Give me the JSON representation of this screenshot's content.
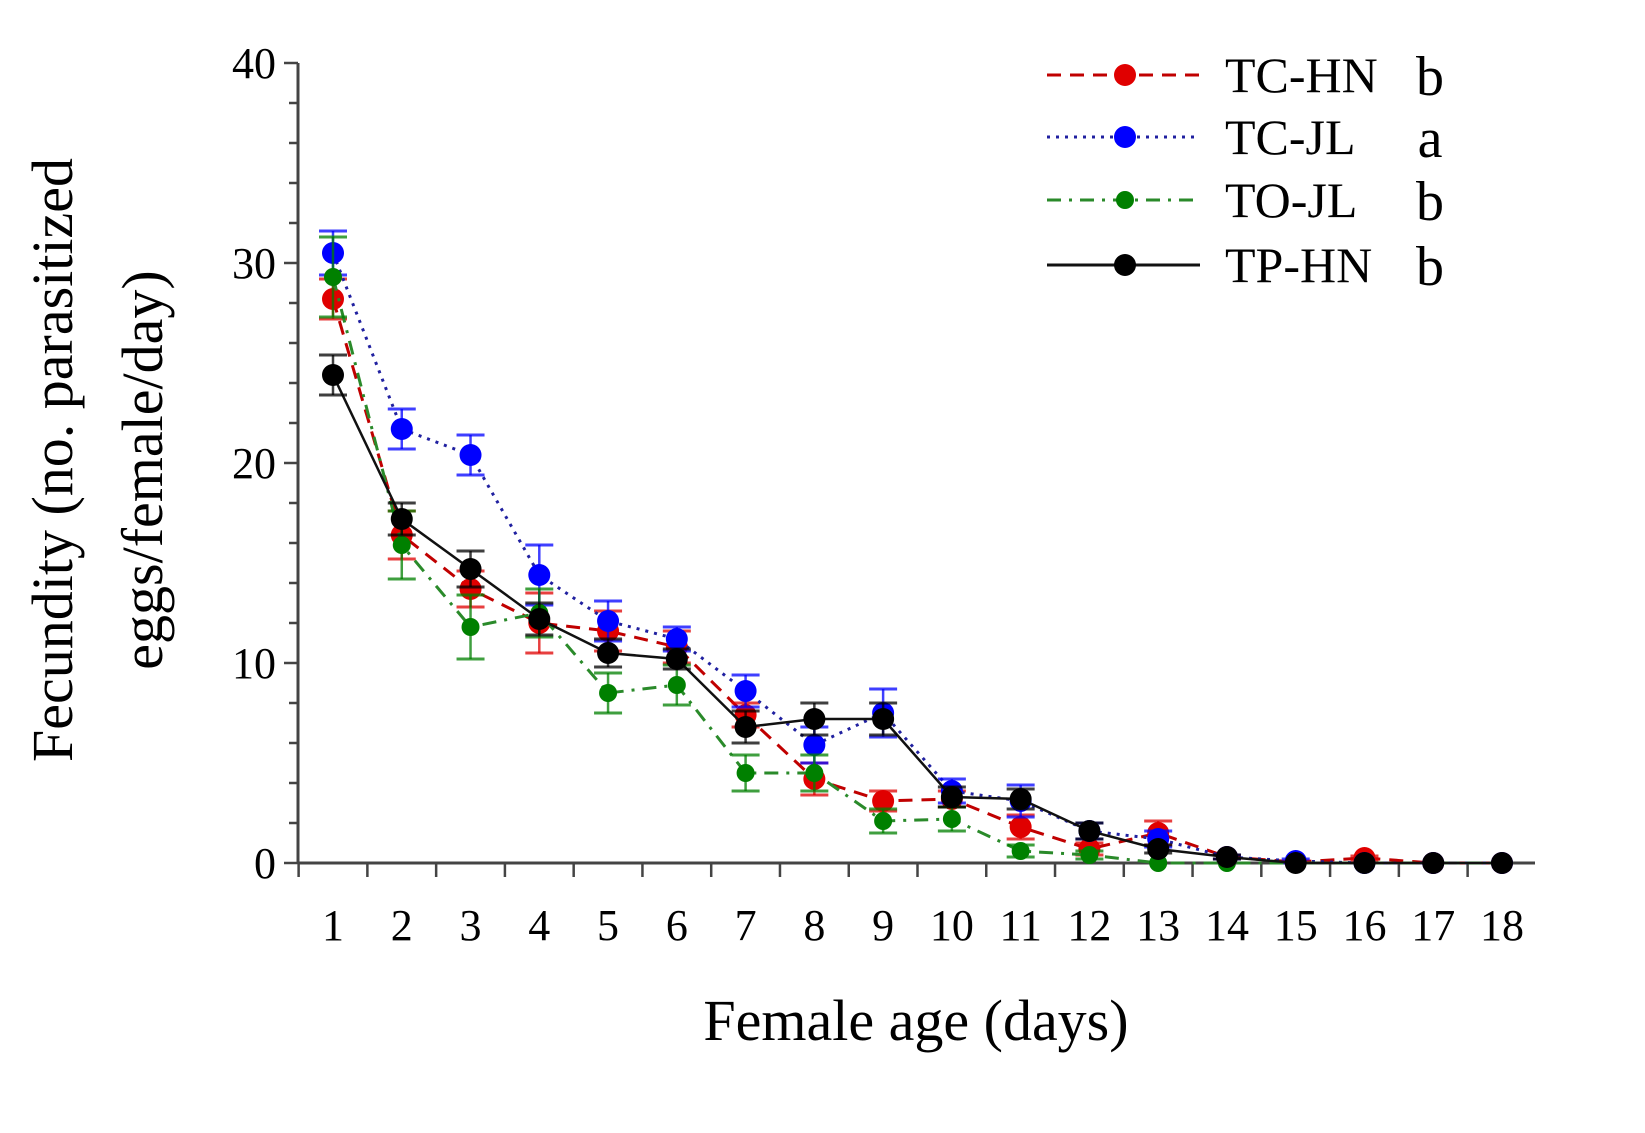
{
  "chart_data": {
    "type": "line",
    "title": "",
    "xlabel": "Female age (days)",
    "ylabel_line1": "Fecundity (no. parasitized",
    "ylabel_line2": "eggs/female/day)",
    "ylim": [
      0,
      40
    ],
    "yticks": [
      0,
      10,
      20,
      30,
      40
    ],
    "x": [
      1,
      2,
      3,
      4,
      5,
      6,
      7,
      8,
      9,
      10,
      11,
      12,
      13,
      14,
      15,
      16,
      17,
      18
    ],
    "grid": false,
    "legend_position": "top-right",
    "series": [
      {
        "name": "TC-HN",
        "letter": "b",
        "color": "#e00000",
        "line_color": "#c00000",
        "dash": "dashed",
        "values": [
          28.2,
          16.4,
          13.7,
          12.0,
          11.6,
          10.8,
          7.4,
          4.2,
          3.1,
          3.2,
          1.8,
          0.7,
          1.5,
          0.3,
          0.05,
          0.25,
          0,
          0
        ],
        "errors": [
          1.0,
          1.2,
          0.9,
          1.5,
          1.0,
          0.8,
          0.6,
          0.8,
          0.5,
          0.4,
          0.6,
          0.3,
          0.6,
          0.1,
          0.05,
          0.1,
          0,
          0
        ]
      },
      {
        "name": "TC-JL",
        "letter": "a",
        "color": "#0000ff",
        "line_color": "#2020a0",
        "dash": "dotted",
        "values": [
          30.5,
          21.7,
          20.4,
          14.4,
          12.1,
          11.2,
          8.6,
          5.9,
          7.5,
          3.6,
          3.1,
          1.6,
          1.2,
          0.3,
          0.1,
          0,
          0,
          0
        ],
        "errors": [
          1.1,
          1.0,
          1.0,
          1.5,
          1.0,
          0.6,
          0.8,
          0.9,
          1.2,
          0.6,
          0.8,
          0.4,
          0.4,
          0.1,
          0.1,
          0,
          0,
          0
        ]
      },
      {
        "name": "TO-JL",
        "letter": "b",
        "color": "#008000",
        "line_color": "#2a8a2a",
        "dash": "dashdot",
        "values": [
          29.3,
          15.9,
          11.8,
          12.5,
          8.5,
          8.9,
          4.5,
          4.5,
          2.1,
          2.2,
          0.6,
          0.4,
          0,
          0,
          0,
          0,
          0,
          0
        ],
        "errors": [
          2.0,
          1.7,
          1.6,
          1.2,
          1.0,
          1.0,
          0.9,
          0.9,
          0.6,
          0.6,
          0.3,
          0.2,
          0,
          0,
          0,
          0,
          0,
          0
        ]
      },
      {
        "name": "TP-HN",
        "letter": "b",
        "color": "#000000",
        "line_color": "#111111",
        "dash": "solid",
        "values": [
          24.4,
          17.2,
          14.7,
          12.2,
          10.5,
          10.2,
          6.8,
          7.2,
          7.2,
          3.3,
          3.2,
          1.6,
          0.7,
          0.3,
          0,
          0,
          0,
          0
        ],
        "errors": [
          1.0,
          0.8,
          0.9,
          0.8,
          0.7,
          0.5,
          0.8,
          0.8,
          0.8,
          0.5,
          0.5,
          0.4,
          0.2,
          0.1,
          0,
          0,
          0,
          0
        ]
      }
    ]
  }
}
